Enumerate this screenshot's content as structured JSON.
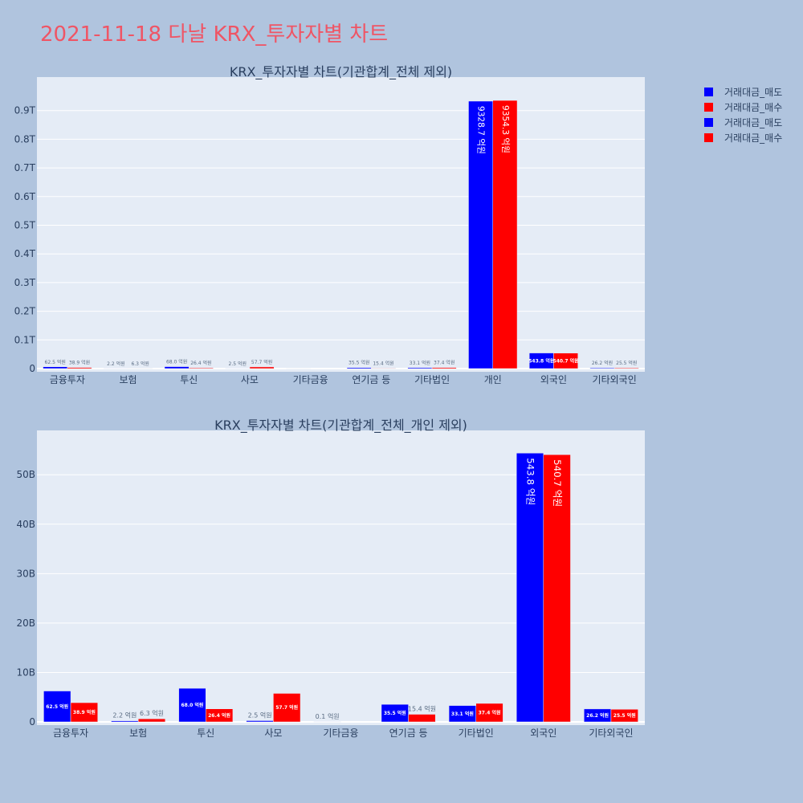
{
  "title": "2021-11-18 다날 KRX_투자자별 차트",
  "legend": [
    {
      "label": "거래대금_매도",
      "color": "#0000ff"
    },
    {
      "label": "거래대금_매수",
      "color": "#ff0000"
    },
    {
      "label": "거래대금_매도",
      "color": "#0000ff"
    },
    {
      "label": "거래대금_매수",
      "color": "#ff0000"
    }
  ],
  "chart_data": [
    {
      "type": "bar",
      "title": "KRX_투자자별 차트(기관합계_전체 제외)",
      "categories": [
        "금융투자",
        "보험",
        "투신",
        "사모",
        "기타금융",
        "연기금 등",
        "기타법인",
        "개인",
        "외국인",
        "기타외국인"
      ],
      "series": [
        {
          "name": "거래대금_매도",
          "color": "#0000ff",
          "values": [
            6250000000,
            220000000,
            6800000000,
            250000000,
            10000000,
            3550000000,
            3310000000,
            932870000000,
            54380000000,
            2620000000
          ],
          "labels": [
            "62.5 억원",
            "2.2 억원",
            "68.0 억원",
            "2.5 억원",
            "",
            "35.5 억원",
            "33.1 억원",
            "9328.7 억원",
            "543.8 억원",
            "26.2 억원"
          ]
        },
        {
          "name": "거래대금_매수",
          "color": "#ff0000",
          "values": [
            3890000000,
            630000000,
            2640000000,
            5770000000,
            0,
            1540000000,
            3740000000,
            935430000000,
            54070000000,
            2550000000
          ],
          "labels": [
            "38.9 억원",
            "6.3 억원",
            "26.4 억원",
            "57.7 억원",
            "",
            "15.4 억원",
            "37.4 억원",
            "9354.3 억원",
            "540.7 억원",
            "25.5 억원"
          ]
        }
      ],
      "ylim": [
        0,
        1000000000000
      ],
      "yticks": [
        {
          "v": 0,
          "label": "0"
        },
        {
          "v": 100000000000,
          "label": "0.1T"
        },
        {
          "v": 200000000000,
          "label": "0.2T"
        },
        {
          "v": 300000000000,
          "label": "0.3T"
        },
        {
          "v": 400000000000,
          "label": "0.4T"
        },
        {
          "v": 500000000000,
          "label": "0.5T"
        },
        {
          "v": 600000000000,
          "label": "0.6T"
        },
        {
          "v": 700000000000,
          "label": "0.7T"
        },
        {
          "v": 800000000000,
          "label": "0.8T"
        },
        {
          "v": 900000000000,
          "label": "0.9T"
        }
      ],
      "grid": true
    },
    {
      "type": "bar",
      "title": "KRX_투자자별 차트(기관합계_전체_개인 제외)",
      "categories": [
        "금융투자",
        "보험",
        "투신",
        "사모",
        "기타금융",
        "연기금 등",
        "기타법인",
        "외국인",
        "기타외국인"
      ],
      "series": [
        {
          "name": "거래대금_매도",
          "color": "#0000ff",
          "values": [
            6250000000,
            220000000,
            6800000000,
            250000000,
            10000000,
            3550000000,
            3310000000,
            54380000000,
            2620000000
          ],
          "labels": [
            "62.5 억원",
            "2.2 억원",
            "68.0 억원",
            "2.5 억원",
            "0.1 억원",
            "35.5 억원",
            "33.1 억원",
            "543.8 억원",
            "26.2 억원"
          ]
        },
        {
          "name": "거래대금_매수",
          "color": "#ff0000",
          "values": [
            3890000000,
            630000000,
            2640000000,
            5770000000,
            0,
            1540000000,
            3740000000,
            54070000000,
            2550000000
          ],
          "labels": [
            "38.9 억원",
            "6.3 억원",
            "26.4 억원",
            "57.7 억원",
            "",
            "15.4 억원",
            "37.4 억원",
            "540.7 억원",
            "25.5 억원"
          ]
        }
      ],
      "ylim": [
        0,
        58000000000
      ],
      "yticks": [
        {
          "v": 0,
          "label": "0"
        },
        {
          "v": 10000000000,
          "label": "10B"
        },
        {
          "v": 20000000000,
          "label": "20B"
        },
        {
          "v": 30000000000,
          "label": "30B"
        },
        {
          "v": 40000000000,
          "label": "40B"
        },
        {
          "v": 50000000000,
          "label": "50B"
        }
      ],
      "grid": true
    }
  ]
}
